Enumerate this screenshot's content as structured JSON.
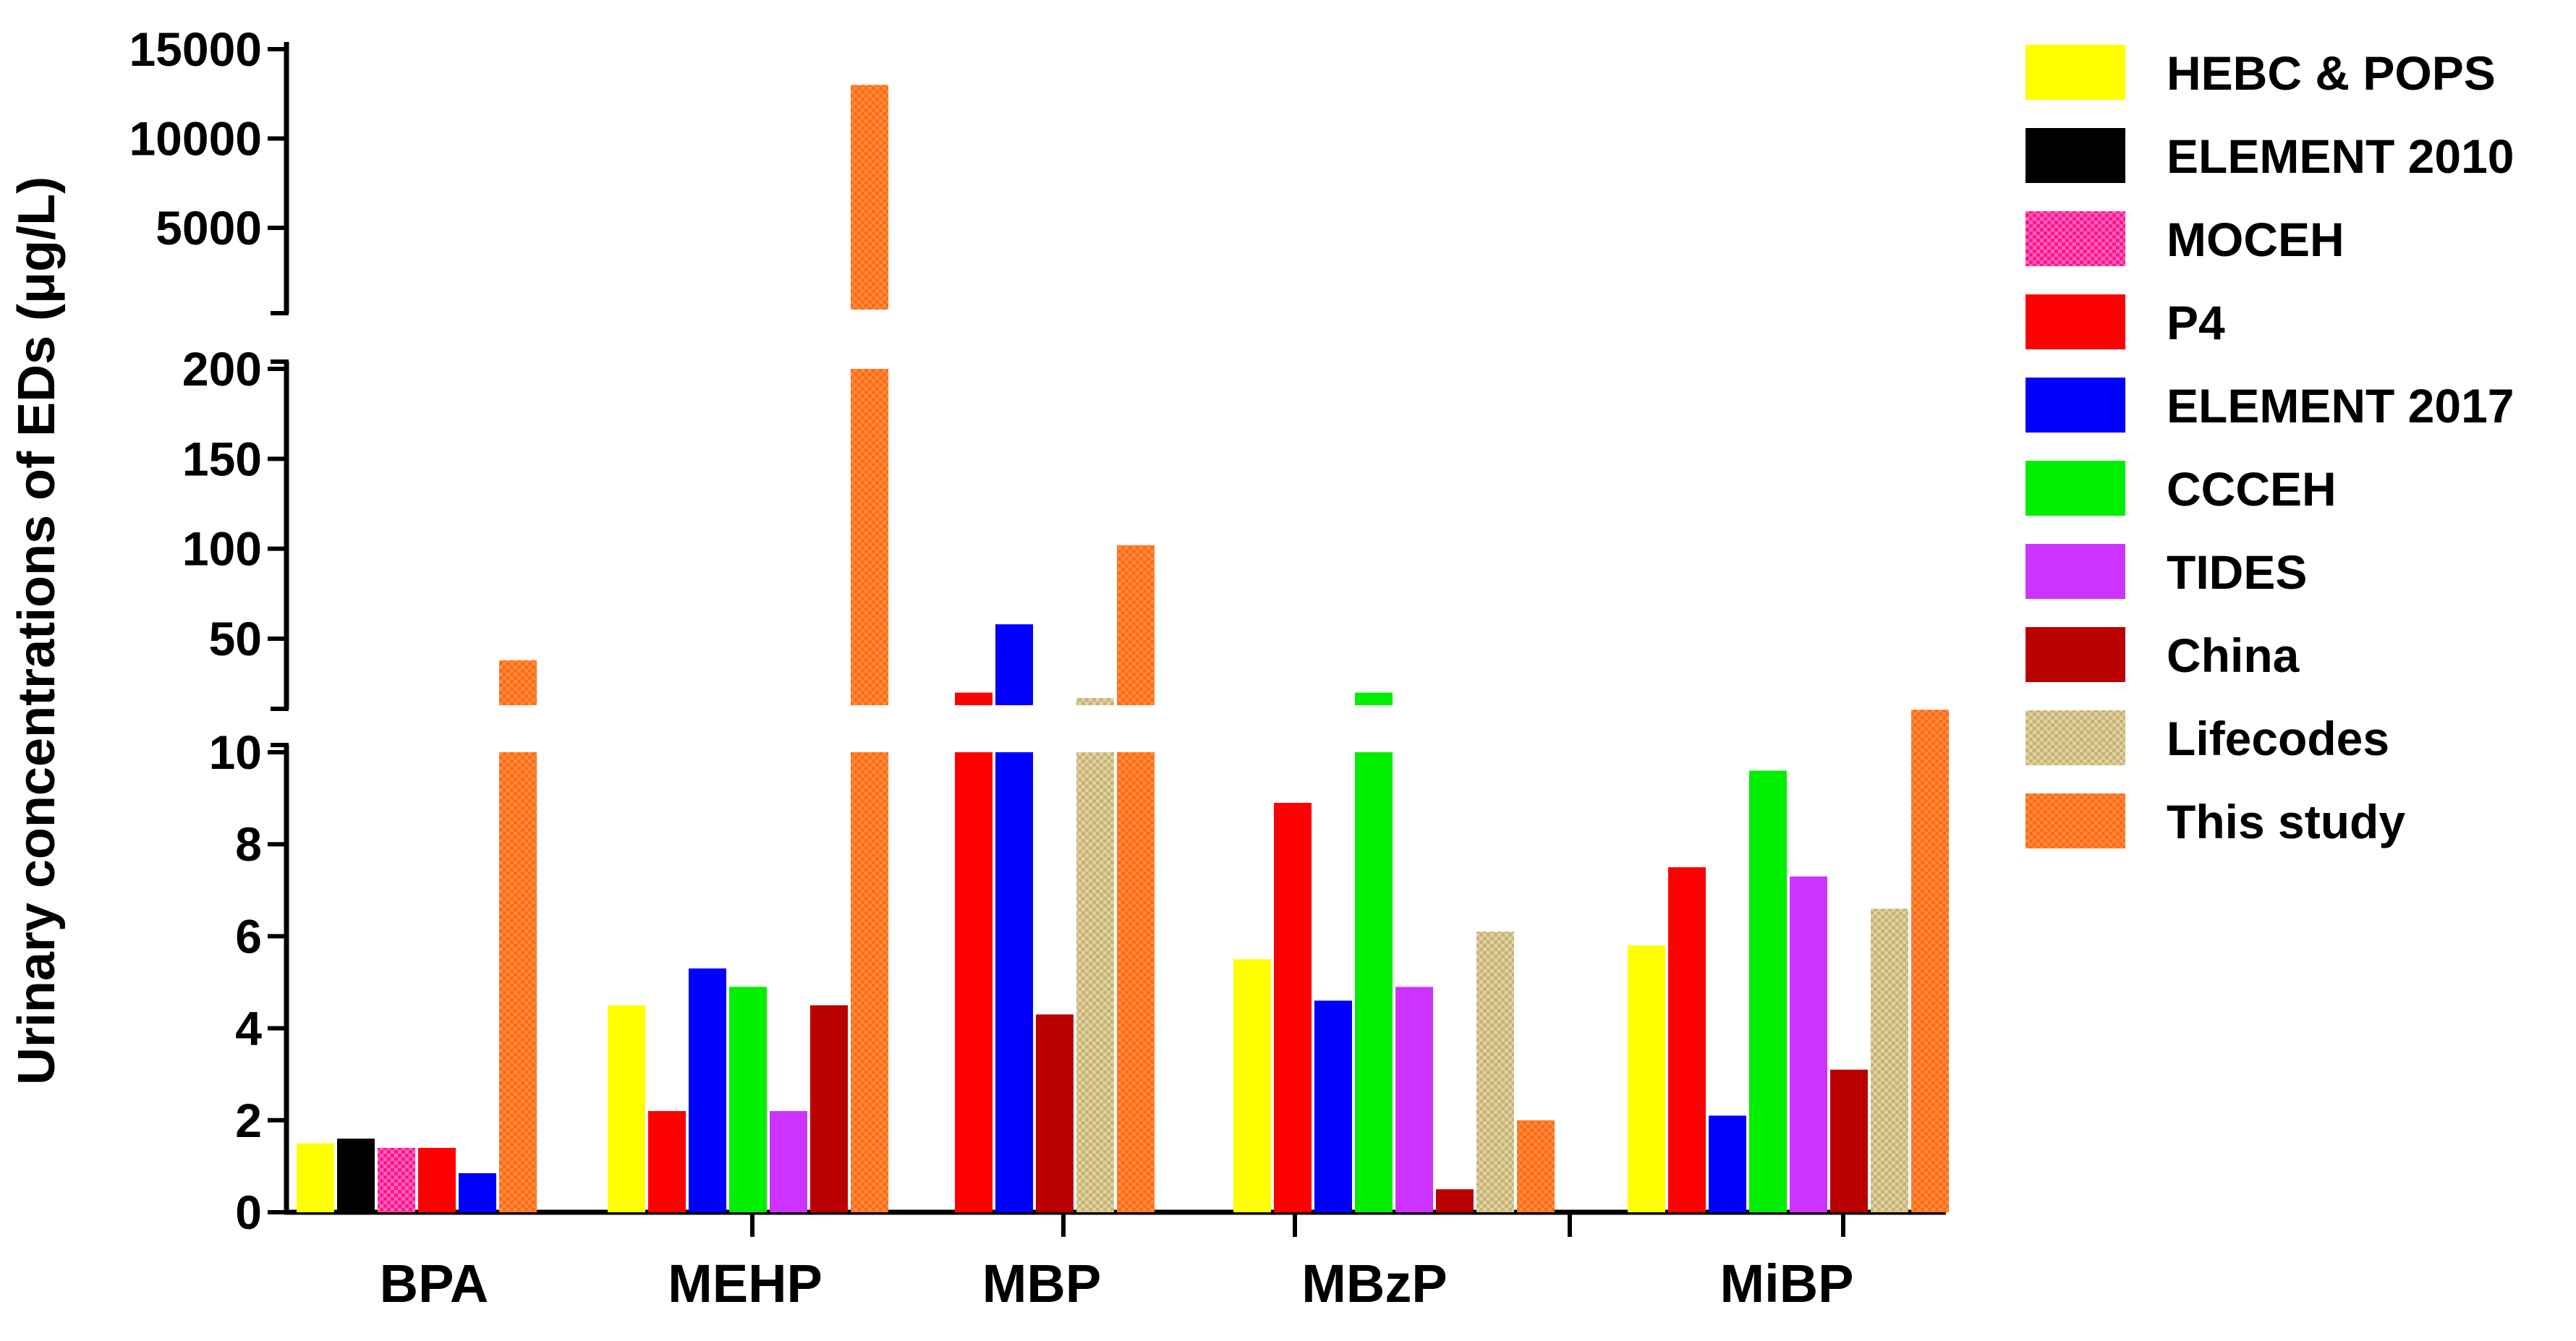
{
  "chart_data": {
    "type": "bar",
    "title": "",
    "xlabel": "",
    "ylabel": "Urinary concentrations of EDs (μg/L)",
    "categories": [
      "BPA",
      "MEHP",
      "MBP",
      "MBzP",
      "MiBP"
    ],
    "y_segments": [
      {
        "range": [
          0,
          10
        ],
        "ticks": [
          "0",
          "2",
          "4",
          "6",
          "8",
          "10"
        ]
      },
      {
        "range": [
          10,
          200
        ],
        "ticks": [
          "50",
          "100",
          "150",
          "200"
        ]
      },
      {
        "range": [
          200,
          15000
        ],
        "ticks": [
          "5000",
          "10000",
          "15000"
        ]
      }
    ],
    "legend_position": "right",
    "series": [
      {
        "name": "HEBC & POPS",
        "color": "#ffff00",
        "values": [
          1.5,
          4.5,
          null,
          5.5,
          5.8
        ]
      },
      {
        "name": "ELEMENT 2010",
        "color": "#000000",
        "values": [
          1.6,
          null,
          null,
          null,
          null
        ]
      },
      {
        "name": "MOCEH",
        "color": "#ff1493",
        "values": [
          1.4,
          null,
          null,
          null,
          null
        ]
      },
      {
        "name": "P4",
        "color": "#ff0000",
        "values": [
          1.4,
          2.2,
          20,
          8.9,
          7.5
        ]
      },
      {
        "name": "ELEMENT 2017",
        "color": "#0000ff",
        "values": [
          0.85,
          5.3,
          58,
          4.6,
          2.1
        ]
      },
      {
        "name": "CCCEH",
        "color": "#00ee00",
        "values": [
          null,
          4.9,
          null,
          20,
          9.6
        ]
      },
      {
        "name": "TIDES",
        "color": "#cc33ff",
        "values": [
          null,
          2.2,
          null,
          4.9,
          7.3
        ]
      },
      {
        "name": "China",
        "color": "#bb0000",
        "values": [
          null,
          4.5,
          4.3,
          0.5,
          3.1
        ]
      },
      {
        "name": "Lifecodes",
        "color": "#c8b478",
        "values": [
          null,
          null,
          17,
          6.1,
          6.6
        ]
      },
      {
        "name": "This study",
        "color": "#ff6a1a",
        "values": [
          38,
          13000,
          102,
          2.0,
          10.5
        ]
      }
    ]
  }
}
